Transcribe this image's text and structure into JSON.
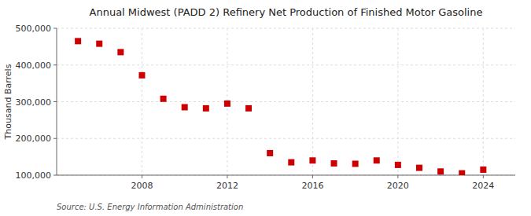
{
  "chart_data": {
    "type": "scatter",
    "title": "Annual Midwest (PADD 2) Refinery Net Production of Finished Motor Gasoline",
    "y_label": "Thousand Barrels",
    "source": "Source: U.S. Energy Information Administration",
    "x": [
      2005,
      2006,
      2007,
      2008,
      2009,
      2010,
      2011,
      2012,
      2013,
      2014,
      2015,
      2016,
      2017,
      2018,
      2019,
      2020,
      2021,
      2022,
      2023,
      2024
    ],
    "values": [
      465000,
      458000,
      435000,
      372000,
      308000,
      285000,
      282000,
      295000,
      282000,
      160000,
      135000,
      140000,
      132000,
      131000,
      140000,
      128000,
      120000,
      110000,
      105000,
      115000
    ],
    "color": "#cc0000",
    "marker": "square",
    "xlim": [
      2004.0,
      2025.5
    ],
    "xticks": [
      2008,
      2012,
      2016,
      2020,
      2024
    ],
    "ylim": [
      100000,
      500000
    ],
    "yticks": [
      {
        "value": 100000,
        "label": "100,000"
      },
      {
        "value": 200000,
        "label": "200,000"
      },
      {
        "value": 300000,
        "label": "300,000"
      },
      {
        "value": 400000,
        "label": "400,000"
      },
      {
        "value": 500000,
        "label": "500,000"
      }
    ],
    "grid": true
  }
}
